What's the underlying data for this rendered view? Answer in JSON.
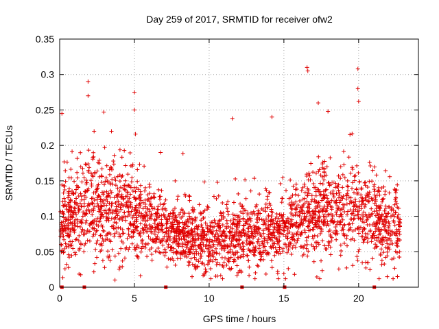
{
  "chart_data": {
    "type": "scatter",
    "title": "Day 259 of 2017, SRMTID for receiver ofw2",
    "xlabel": "GPS time / hours",
    "ylabel": "SRMTID / TECUs",
    "xlim": [
      0,
      24
    ],
    "ylim": [
      0,
      0.35
    ],
    "x_ticks": [
      0,
      5,
      10,
      15,
      20
    ],
    "x_tick_labels": [
      "0",
      "5",
      "10",
      "15",
      "20"
    ],
    "y_ticks": [
      0,
      0.05,
      0.1,
      0.15,
      0.2,
      0.25,
      0.3,
      0.35
    ],
    "y_tick_labels": [
      "0",
      "0.05",
      "0.1",
      "0.15",
      "0.2",
      "0.25",
      "0.3",
      "0.35"
    ],
    "grid": true,
    "marker": "plus",
    "color": "#e00000",
    "baseline_markers_x": [
      0.15,
      1.65,
      7.1,
      12.2,
      15.05,
      21.05
    ],
    "notable_points": [
      {
        "x": 0.15,
        "y": 0.245
      },
      {
        "x": 1.9,
        "y": 0.29
      },
      {
        "x": 1.9,
        "y": 0.27
      },
      {
        "x": 2.95,
        "y": 0.247
      },
      {
        "x": 5.0,
        "y": 0.275
      },
      {
        "x": 5.0,
        "y": 0.25
      },
      {
        "x": 11.55,
        "y": 0.238
      },
      {
        "x": 14.2,
        "y": 0.24
      },
      {
        "x": 16.55,
        "y": 0.31
      },
      {
        "x": 16.6,
        "y": 0.305
      },
      {
        "x": 17.3,
        "y": 0.26
      },
      {
        "x": 17.95,
        "y": 0.248
      },
      {
        "x": 19.95,
        "y": 0.308
      },
      {
        "x": 19.95,
        "y": 0.28
      },
      {
        "x": 20.0,
        "y": 0.262
      },
      {
        "x": 3.7,
        "y": 0.01
      },
      {
        "x": 10.9,
        "y": 0.012
      },
      {
        "x": 22.6,
        "y": 0.015
      }
    ],
    "cloud_profile": [
      {
        "x": 0,
        "mean": 0.085,
        "spread": 0.035
      },
      {
        "x": 2,
        "mean": 0.115,
        "spread": 0.045
      },
      {
        "x": 4.5,
        "mean": 0.11,
        "spread": 0.04
      },
      {
        "x": 7,
        "mean": 0.075,
        "spread": 0.03
      },
      {
        "x": 10,
        "mean": 0.07,
        "spread": 0.028
      },
      {
        "x": 13,
        "mean": 0.07,
        "spread": 0.028
      },
      {
        "x": 15,
        "mean": 0.08,
        "spread": 0.03
      },
      {
        "x": 17,
        "mean": 0.11,
        "spread": 0.04
      },
      {
        "x": 20,
        "mean": 0.105,
        "spread": 0.04
      },
      {
        "x": 22,
        "mean": 0.085,
        "spread": 0.035
      },
      {
        "x": 23,
        "mean": 0.08,
        "spread": 0.035
      }
    ],
    "sample_count": 2600
  }
}
